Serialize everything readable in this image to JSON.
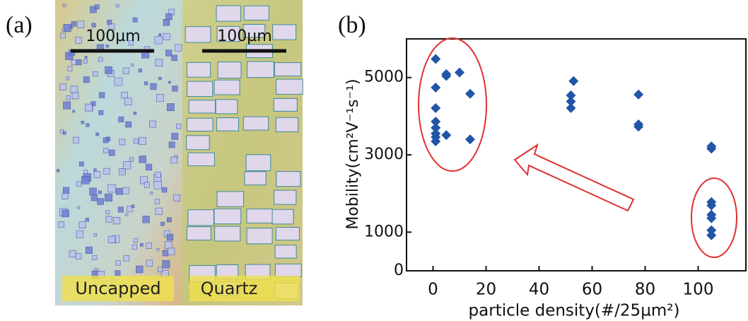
{
  "panel_a": {
    "label": "(a)",
    "scale_bar_left": "100µm",
    "scale_bar_right": "100µm",
    "caption_left": "Uncapped",
    "caption_right": "Quartz"
  },
  "chart_data": {
    "type": "scatter",
    "panel_label": "(b)",
    "x_label": "particle density(#/25µm²)",
    "y_label": "Mobility(cm²V⁻¹s⁻¹)",
    "x": [
      1,
      1,
      1,
      1,
      1,
      1,
      1,
      1,
      5,
      5,
      10,
      14,
      14,
      5,
      53,
      52,
      52,
      52,
      77.5,
      77.5,
      77.5,
      105,
      105,
      105,
      105,
      105,
      105,
      105,
      105
    ],
    "values": [
      5480,
      4740,
      4210,
      3860,
      3700,
      3550,
      3460,
      3350,
      5090,
      5040,
      5130,
      4580,
      3400,
      3510,
      4910,
      4540,
      4380,
      4210,
      4560,
      3790,
      3730,
      3220,
      3160,
      1780,
      1690,
      1450,
      1360,
      1050,
      920
    ],
    "color": "#2155a6",
    "xlim": [
      -10,
      118
    ],
    "ylim": [
      0,
      6000
    ],
    "xticks": [
      0,
      20,
      40,
      60,
      80,
      100
    ],
    "yticks": [
      0,
      1000,
      3000,
      5000
    ]
  }
}
